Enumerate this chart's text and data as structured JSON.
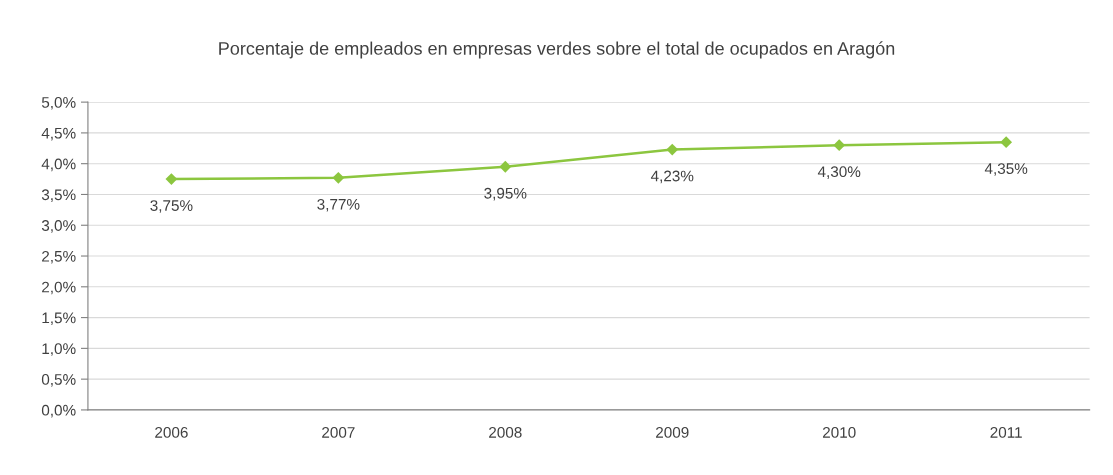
{
  "chart_data": {
    "type": "line",
    "title": "Porcentaje de empleados en empresas verdes sobre el total de ocupados en Aragón",
    "categories": [
      "2006",
      "2007",
      "2008",
      "2009",
      "2010",
      "2011"
    ],
    "series": [
      {
        "color": "#8cc63f",
        "values": [
          3.75,
          3.77,
          3.95,
          4.23,
          4.3,
          4.35
        ],
        "value_labels": [
          "3,75%",
          "3,77%",
          "3,95%",
          "4,23%",
          "4,30%",
          "4,35%"
        ]
      }
    ],
    "ylim": [
      0,
      5
    ],
    "yticks": [
      {
        "value": 0,
        "label": "0,0%"
      },
      {
        "value": 0.5,
        "label": "0,5%"
      },
      {
        "value": 1,
        "label": "1,0%"
      },
      {
        "value": 1.5,
        "label": "1,5%"
      },
      {
        "value": 2,
        "label": "2,0%"
      },
      {
        "value": 2.5,
        "label": "2,5%"
      },
      {
        "value": 3,
        "label": "3,0%"
      },
      {
        "value": 3.5,
        "label": "3,5%"
      },
      {
        "value": 4,
        "label": "4,0%"
      },
      {
        "value": 4.5,
        "label": "4,5%"
      },
      {
        "value": 5,
        "label": "5,0%"
      }
    ],
    "grid": "y",
    "legend": false,
    "marker": "diamond",
    "line_style": "solid"
  }
}
